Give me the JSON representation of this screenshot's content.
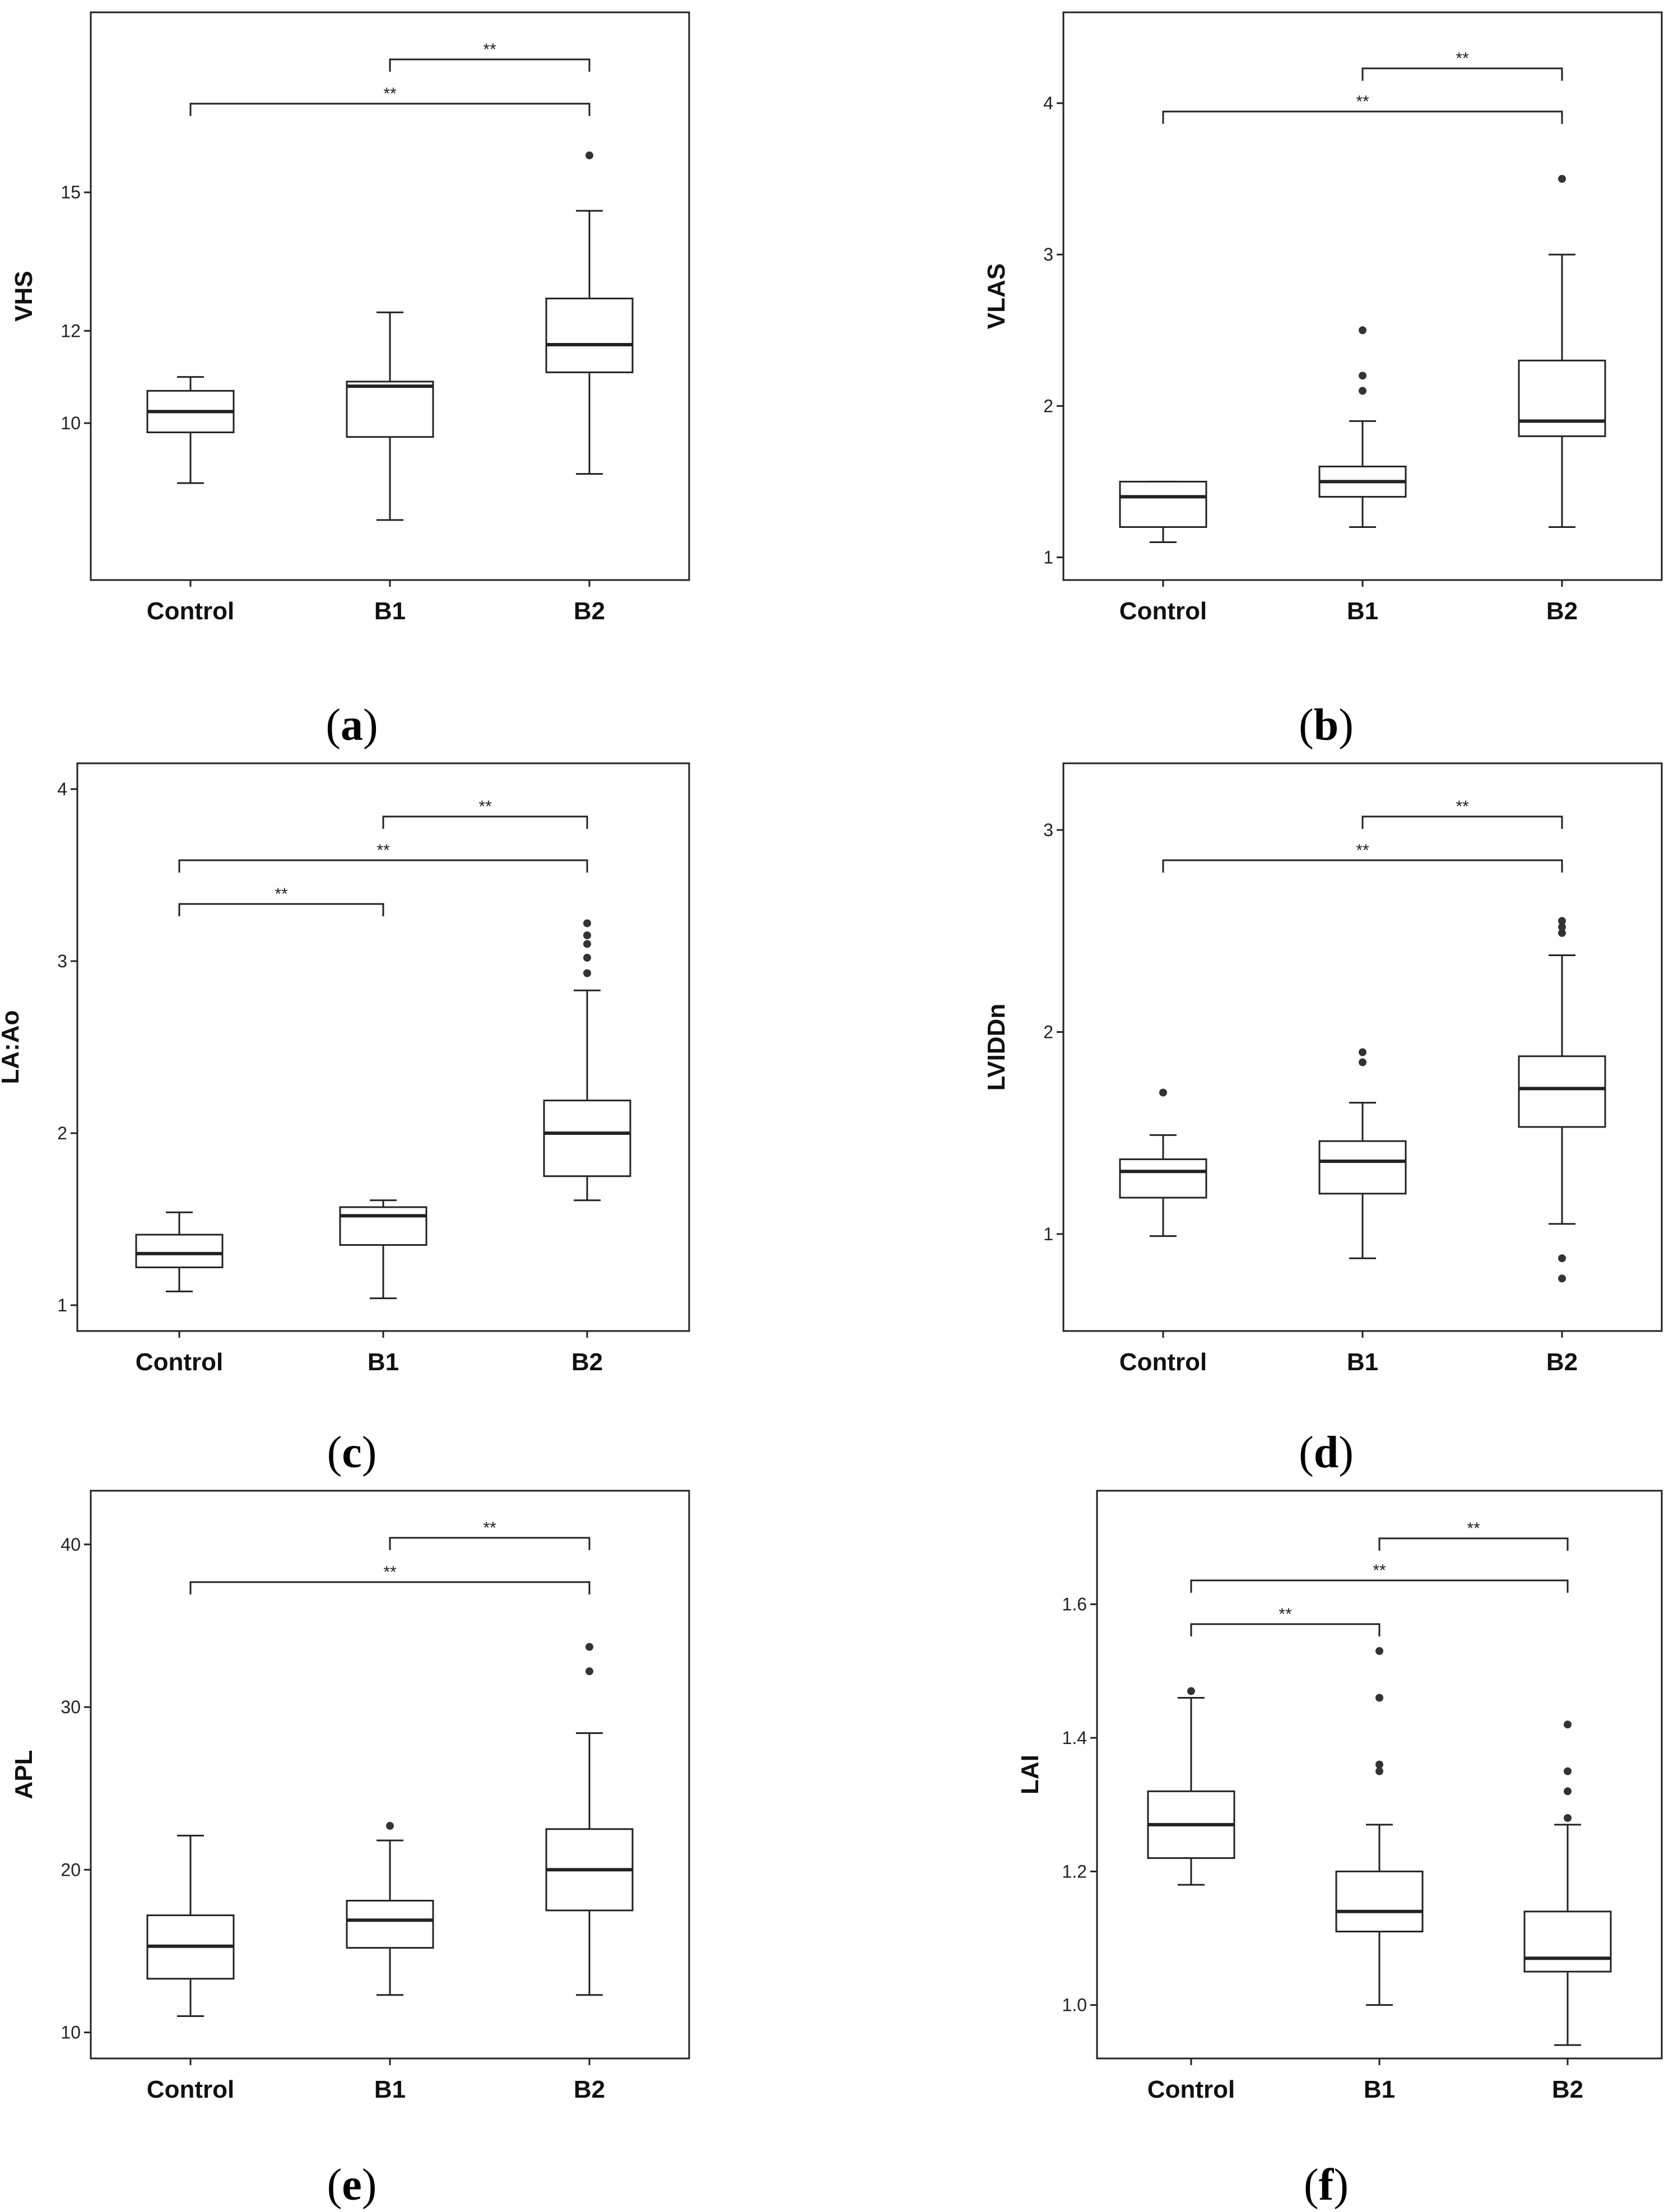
{
  "chart_data": [
    {
      "type": "box",
      "panel": "a",
      "ylabel": "VHS",
      "categories": [
        "Control",
        "B1",
        "B2"
      ],
      "yticks": [
        10,
        12,
        15
      ],
      "ytick_labels": [
        "10",
        "12",
        "15"
      ],
      "ylim": [
        6.6,
        18.9
      ],
      "boxes": [
        {
          "category": "Control",
          "whisker_low": 8.7,
          "q1": 9.8,
          "median": 10.25,
          "q3": 10.7,
          "whisker_high": 11.0,
          "outliers": []
        },
        {
          "category": "B1",
          "whisker_low": 7.9,
          "q1": 9.7,
          "median": 10.8,
          "q3": 10.9,
          "whisker_high": 12.4,
          "outliers": []
        },
        {
          "category": "B2",
          "whisker_low": 8.9,
          "q1": 11.1,
          "median": 11.7,
          "q3": 12.7,
          "whisker_high": 14.6,
          "outliers": [
            15.8
          ]
        }
      ],
      "comparisons": [
        {
          "from": "Control",
          "to": "B2",
          "label": "**"
        },
        {
          "from": "B1",
          "to": "B2",
          "label": "**"
        }
      ],
      "grid": false
    },
    {
      "type": "box",
      "panel": "b",
      "ylabel": "VLAS",
      "categories": [
        "Control",
        "B1",
        "B2"
      ],
      "yticks": [
        1,
        2,
        3,
        4
      ],
      "ytick_labels": [
        "1",
        "2",
        "3",
        "4"
      ],
      "ylim": [
        0.85,
        4.6
      ],
      "boxes": [
        {
          "category": "Control",
          "whisker_low": 1.1,
          "q1": 1.2,
          "median": 1.4,
          "q3": 1.5,
          "whisker_high": 1.5,
          "outliers": []
        },
        {
          "category": "B1",
          "whisker_low": 1.2,
          "q1": 1.4,
          "median": 1.5,
          "q3": 1.6,
          "whisker_high": 1.9,
          "outliers": [
            2.1,
            2.2,
            2.5
          ]
        },
        {
          "category": "B2",
          "whisker_low": 1.2,
          "q1": 1.8,
          "median": 1.9,
          "q3": 2.3,
          "whisker_high": 3.0,
          "outliers": [
            3.5
          ]
        }
      ],
      "comparisons": [
        {
          "from": "Control",
          "to": "B2",
          "label": "**"
        },
        {
          "from": "B1",
          "to": "B2",
          "label": "**"
        }
      ],
      "grid": false
    },
    {
      "type": "box",
      "panel": "c",
      "ylabel": "LA:Ao",
      "categories": [
        "Control",
        "B1",
        "B2"
      ],
      "yticks": [
        1,
        2,
        3,
        4
      ],
      "ytick_labels": [
        "1",
        "2",
        "3",
        "4"
      ],
      "ylim": [
        0.85,
        4.15
      ],
      "boxes": [
        {
          "category": "Control",
          "whisker_low": 1.08,
          "q1": 1.22,
          "median": 1.3,
          "q3": 1.41,
          "whisker_high": 1.54,
          "outliers": []
        },
        {
          "category": "B1",
          "whisker_low": 1.04,
          "q1": 1.35,
          "median": 1.52,
          "q3": 1.57,
          "whisker_high": 1.61,
          "outliers": []
        },
        {
          "category": "B2",
          "whisker_low": 1.61,
          "q1": 1.75,
          "median": 2.0,
          "q3": 2.19,
          "whisker_high": 2.83,
          "outliers": [
            2.93,
            3.02,
            3.1,
            3.15,
            3.22
          ]
        }
      ],
      "comparisons": [
        {
          "from": "Control",
          "to": "B1",
          "label": "**"
        },
        {
          "from": "Control",
          "to": "B2",
          "label": "**"
        },
        {
          "from": "B1",
          "to": "B2",
          "label": "**"
        }
      ],
      "grid": false
    },
    {
      "type": "box",
      "panel": "d",
      "ylabel": "LVIDDn",
      "categories": [
        "Control",
        "B1",
        "B2"
      ],
      "yticks": [
        1,
        2,
        3
      ],
      "ytick_labels": [
        "1",
        "2",
        "3"
      ],
      "ylim": [
        0.52,
        3.33
      ],
      "boxes": [
        {
          "category": "Control",
          "whisker_low": 0.99,
          "q1": 1.18,
          "median": 1.31,
          "q3": 1.37,
          "whisker_high": 1.49,
          "outliers": [
            1.7
          ]
        },
        {
          "category": "B1",
          "whisker_low": 0.88,
          "q1": 1.2,
          "median": 1.36,
          "q3": 1.46,
          "whisker_high": 1.65,
          "outliers": [
            1.85,
            1.9
          ]
        },
        {
          "category": "B2",
          "whisker_low": 1.05,
          "q1": 1.53,
          "median": 1.72,
          "q3": 1.88,
          "whisker_high": 2.38,
          "outliers": [
            0.78,
            0.88,
            2.49,
            2.52,
            2.55
          ]
        }
      ],
      "comparisons": [
        {
          "from": "Control",
          "to": "B2",
          "label": "**"
        },
        {
          "from": "B1",
          "to": "B2",
          "label": "**"
        }
      ],
      "grid": false
    },
    {
      "type": "box",
      "panel": "e",
      "ylabel": "APL",
      "categories": [
        "Control",
        "B1",
        "B2"
      ],
      "yticks": [
        10,
        20,
        30,
        40
      ],
      "ytick_labels": [
        "10",
        "20",
        "30",
        "40"
      ],
      "ylim": [
        8.4,
        43.3
      ],
      "boxes": [
        {
          "category": "Control",
          "whisker_low": 11.0,
          "q1": 13.3,
          "median": 15.3,
          "q3": 17.2,
          "whisker_high": 22.1,
          "outliers": []
        },
        {
          "category": "B1",
          "whisker_low": 12.3,
          "q1": 15.2,
          "median": 16.9,
          "q3": 18.1,
          "whisker_high": 21.8,
          "outliers": [
            22.7
          ]
        },
        {
          "category": "B2",
          "whisker_low": 12.3,
          "q1": 17.5,
          "median": 20.0,
          "q3": 22.5,
          "whisker_high": 28.4,
          "outliers": [
            32.2,
            33.7
          ]
        }
      ],
      "comparisons": [
        {
          "from": "Control",
          "to": "B2",
          "label": "**"
        },
        {
          "from": "B1",
          "to": "B2",
          "label": "**"
        }
      ],
      "grid": false
    },
    {
      "type": "box",
      "panel": "f",
      "ylabel": "LAI",
      "categories": [
        "Control",
        "B1",
        "B2"
      ],
      "yticks": [
        1.0,
        1.2,
        1.4,
        1.6
      ],
      "ytick_labels": [
        "1.0",
        "1.2",
        "1.4",
        "1.6"
      ],
      "ylim": [
        0.92,
        1.77
      ],
      "boxes": [
        {
          "category": "Control",
          "whisker_low": 1.18,
          "q1": 1.22,
          "median": 1.27,
          "q3": 1.32,
          "whisker_high": 1.46,
          "outliers": [
            1.47
          ]
        },
        {
          "category": "B1",
          "whisker_low": 1.0,
          "q1": 1.11,
          "median": 1.14,
          "q3": 1.2,
          "whisker_high": 1.27,
          "outliers": [
            1.35,
            1.36,
            1.46,
            1.53
          ]
        },
        {
          "category": "B2",
          "whisker_low": 0.94,
          "q1": 1.05,
          "median": 1.07,
          "q3": 1.14,
          "whisker_high": 1.27,
          "outliers": [
            1.28,
            1.32,
            1.35,
            1.42
          ]
        }
      ],
      "comparisons": [
        {
          "from": "Control",
          "to": "B1",
          "label": "**"
        },
        {
          "from": "Control",
          "to": "B2",
          "label": "**"
        },
        {
          "from": "B1",
          "to": "B2",
          "label": "**"
        }
      ],
      "grid": false
    }
  ],
  "panel_labels": [
    {
      "open": "(",
      "letter": "a",
      "close": ")"
    },
    {
      "open": "(",
      "letter": "b",
      "close": ")"
    },
    {
      "open": "(",
      "letter": "c",
      "close": ")"
    },
    {
      "open": "(",
      "letter": "d",
      "close": ")"
    },
    {
      "open": "(",
      "letter": "e",
      "close": ")"
    },
    {
      "open": "(",
      "letter": "f",
      "close": ")"
    }
  ],
  "colors": {
    "box_fill": "#ffffff",
    "line": "#222222",
    "outlier": "#333333"
  }
}
